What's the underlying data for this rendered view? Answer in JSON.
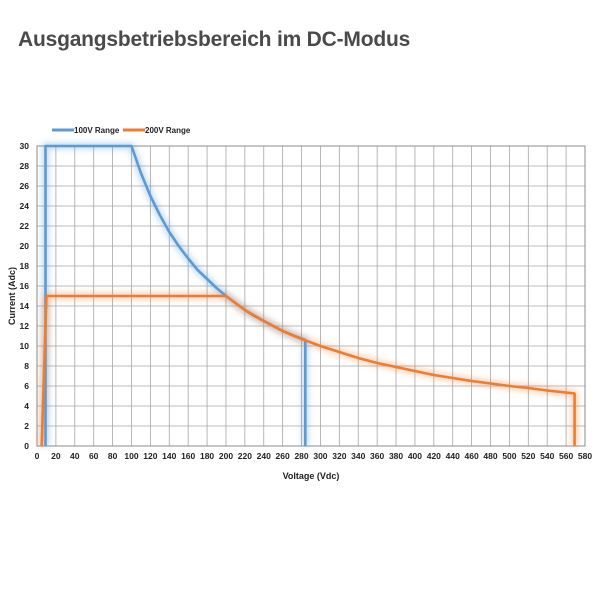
{
  "page": {
    "title": "Ausgangsbetriebsbereich im DC-Modus"
  },
  "chart_data": {
    "type": "line",
    "xlabel": "Voltage (Vdc)",
    "ylabel": "Current (Adc)",
    "xlim": [
      0,
      580
    ],
    "ylim": [
      0,
      30
    ],
    "xticks": [
      0,
      20,
      40,
      60,
      80,
      100,
      120,
      140,
      160,
      180,
      200,
      220,
      240,
      260,
      280,
      300,
      320,
      340,
      360,
      380,
      400,
      420,
      440,
      460,
      480,
      500,
      520,
      540,
      560,
      580
    ],
    "yticks": [
      0,
      2,
      4,
      6,
      8,
      10,
      12,
      14,
      16,
      18,
      20,
      22,
      24,
      26,
      28,
      30
    ],
    "grid": true,
    "legend_position": "top-left",
    "series": [
      {
        "name": "100V Range",
        "color": "#5b9bd5",
        "points": [
          [
            9,
            0
          ],
          [
            9,
            30
          ],
          [
            100,
            30
          ],
          [
            110,
            27.3
          ],
          [
            120,
            25
          ],
          [
            130,
            23.1
          ],
          [
            140,
            21.4
          ],
          [
            150,
            20
          ],
          [
            160,
            18.75
          ],
          [
            170,
            17.6
          ],
          [
            180,
            16.7
          ],
          [
            190,
            15.8
          ],
          [
            200,
            15
          ],
          [
            210,
            14.3
          ],
          [
            220,
            13.6
          ],
          [
            230,
            13.0
          ],
          [
            240,
            12.5
          ],
          [
            250,
            12.0
          ],
          [
            260,
            11.5
          ],
          [
            270,
            11.1
          ],
          [
            284,
            10.6
          ],
          [
            284,
            0
          ]
        ]
      },
      {
        "name": "200V Range",
        "color": "#ed7d31",
        "points": [
          [
            5,
            0
          ],
          [
            10,
            15
          ],
          [
            200,
            15
          ],
          [
            220,
            13.6
          ],
          [
            240,
            12.5
          ],
          [
            260,
            11.5
          ],
          [
            280,
            10.7
          ],
          [
            300,
            10.0
          ],
          [
            320,
            9.4
          ],
          [
            340,
            8.8
          ],
          [
            360,
            8.3
          ],
          [
            380,
            7.9
          ],
          [
            400,
            7.5
          ],
          [
            420,
            7.1
          ],
          [
            440,
            6.8
          ],
          [
            460,
            6.5
          ],
          [
            480,
            6.25
          ],
          [
            500,
            6.0
          ],
          [
            520,
            5.8
          ],
          [
            540,
            5.55
          ],
          [
            569,
            5.25
          ],
          [
            569,
            0
          ]
        ]
      }
    ]
  }
}
